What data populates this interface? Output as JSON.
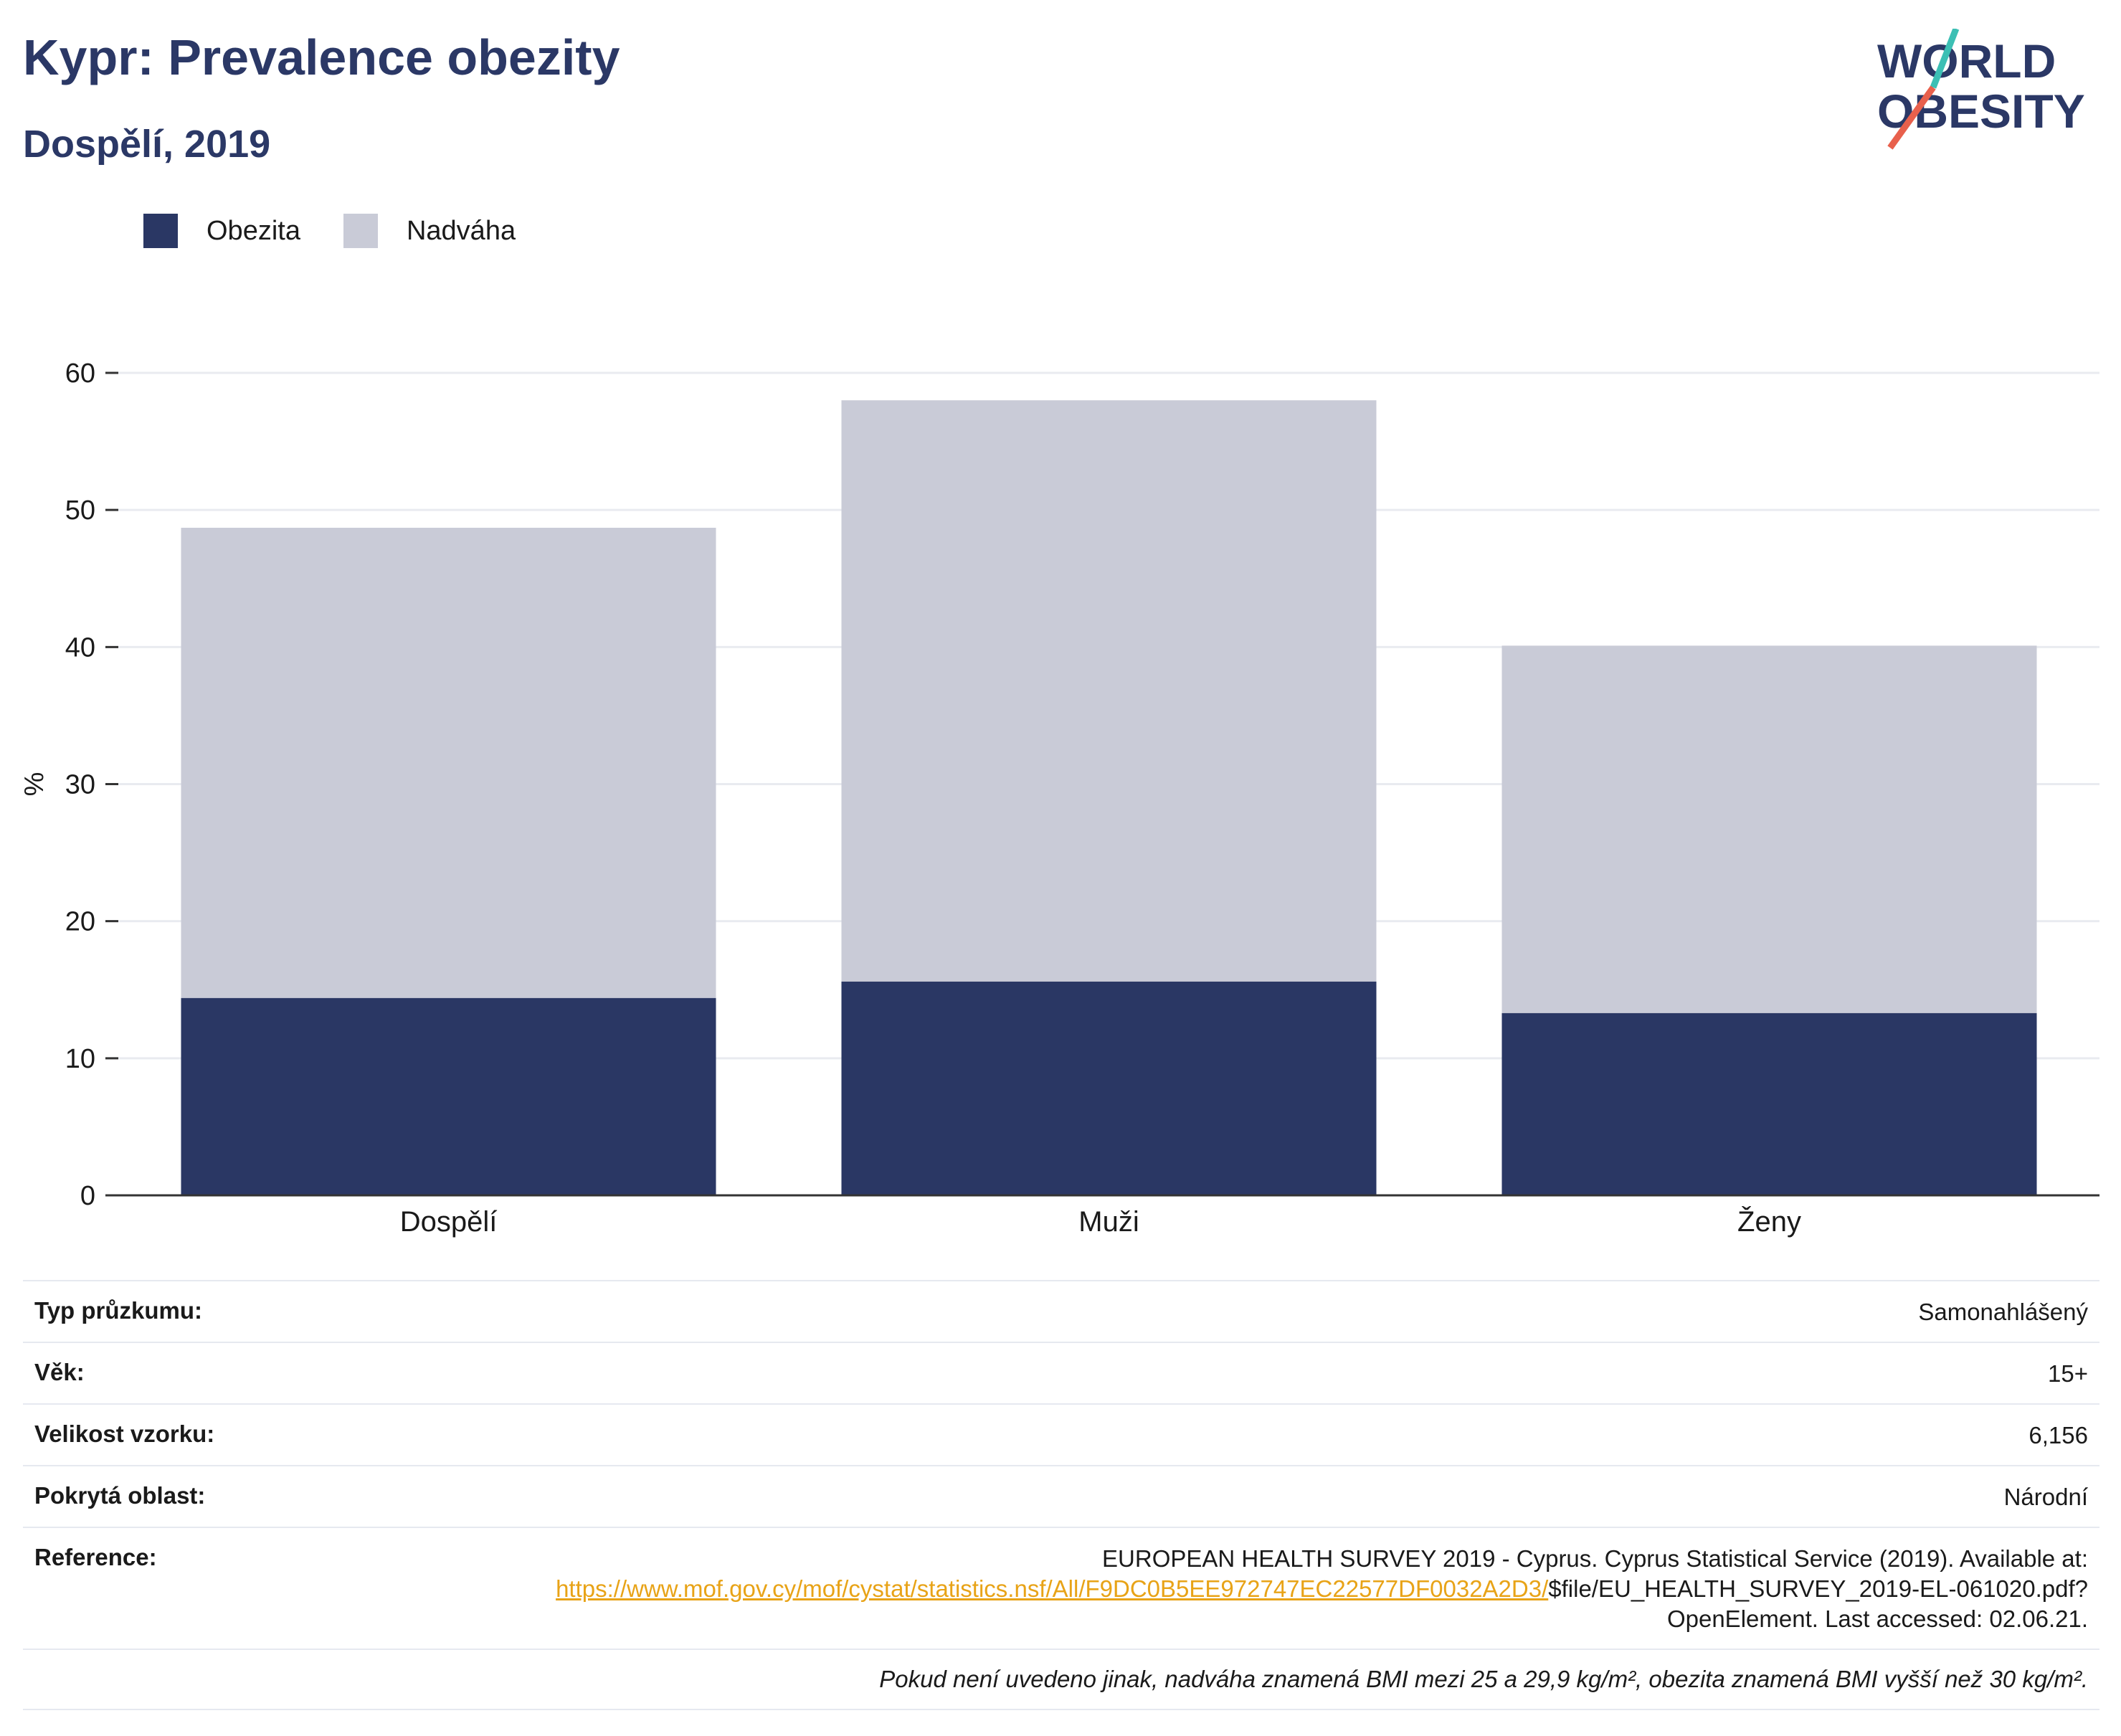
{
  "header": {
    "title": "Kypr: Prevalence obezity",
    "subtitle": "Dospělí, 2019"
  },
  "logo": {
    "line1": "WORLD",
    "line2": "OBESITY",
    "colors": {
      "text": "#2b3866",
      "slash_teal": "#3cbfb4",
      "slash_red": "#e8604c"
    }
  },
  "legend": [
    {
      "label": "Obezita",
      "color": "#2a3764"
    },
    {
      "label": "Nadváha",
      "color": "#c9cbd7"
    }
  ],
  "chart_data": {
    "type": "bar",
    "stacked": true,
    "categories": [
      "Dospělí",
      "Muži",
      "Ženy"
    ],
    "series": [
      {
        "name": "Obezita",
        "color": "#2a3764",
        "values": [
          14.4,
          15.6,
          13.3
        ]
      },
      {
        "name": "Nadváha",
        "color": "#c9cbd7",
        "values": [
          34.3,
          42.4,
          26.8
        ]
      }
    ],
    "ylabel": "%",
    "ylim": [
      0,
      60
    ],
    "yticks": [
      0,
      10,
      20,
      30,
      40,
      50,
      60
    ],
    "grid": true
  },
  "meta": {
    "rows": [
      {
        "key": "Typ průzkumu:",
        "value": "Samonahlášený"
      },
      {
        "key": "Věk:",
        "value": "15+"
      },
      {
        "key": "Velikost vzorku:",
        "value": "6,156"
      },
      {
        "key": "Pokrytá oblast:",
        "value": "Národní"
      }
    ],
    "reference": {
      "key": "Reference:",
      "text_before": "EUROPEAN HEALTH SURVEY 2019 - Cyprus. Cyprus Statistical Service (2019). Available at:",
      "link": "https://www.mof.gov.cy/mof/cystat/statistics.nsf/All/F9DC0B5EE972747EC22577DF0032A2D3/",
      "text_after": "$file/EU_HEALTH_SURVEY_2019-EL-061020.pdf?OpenElement. Last accessed: 02.06.21."
    },
    "footnote": "Pokud není uvedeno jinak, nadváha znamená BMI mezi 25 a 29,9 kg/m², obezita znamená BMI vyšší než 30 kg/m²."
  }
}
